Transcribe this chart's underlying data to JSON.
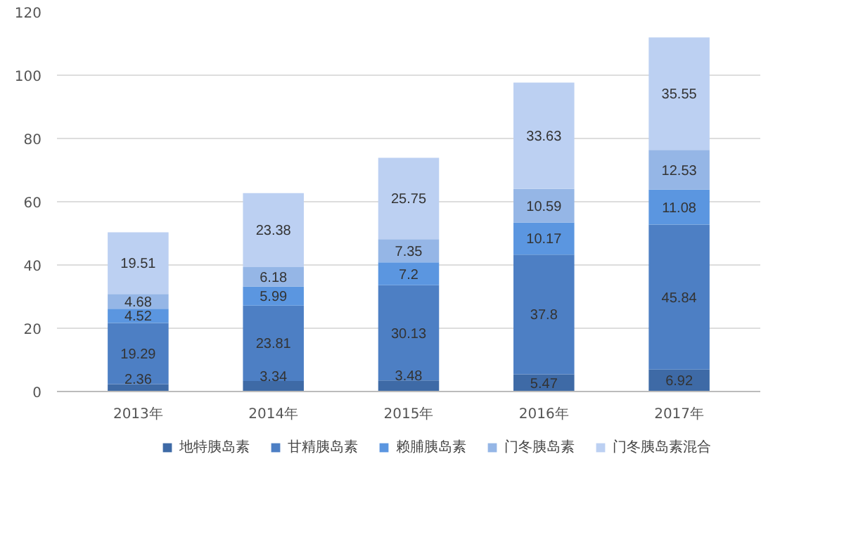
{
  "chart_data": {
    "type": "bar",
    "stacked": true,
    "categories": [
      "2013年",
      "2014年",
      "2015年",
      "2016年",
      "2017年"
    ],
    "series": [
      {
        "name": "地特胰岛素",
        "color": "#3e6aa6",
        "values": [
          2.36,
          3.34,
          3.48,
          5.47,
          6.92
        ]
      },
      {
        "name": "甘精胰岛素",
        "color": "#4d7fc4",
        "values": [
          19.29,
          23.81,
          30.13,
          37.8,
          45.84
        ]
      },
      {
        "name": "赖脯胰岛素",
        "color": "#5b96e0",
        "values": [
          4.52,
          5.99,
          7.2,
          10.17,
          11.08
        ]
      },
      {
        "name": "门冬胰岛素",
        "color": "#95b6e6",
        "values": [
          4.68,
          6.18,
          7.35,
          10.59,
          12.53
        ]
      },
      {
        "name": "门冬胰岛素混合",
        "color": "#bcd0f2",
        "values": [
          19.51,
          23.38,
          25.75,
          33.63,
          35.55
        ]
      }
    ],
    "ylim": [
      0,
      120
    ],
    "yticks": [
      0,
      20,
      40,
      60,
      80,
      100,
      120
    ],
    "grid": "y",
    "legend": "bottom",
    "data_labels": true
  }
}
